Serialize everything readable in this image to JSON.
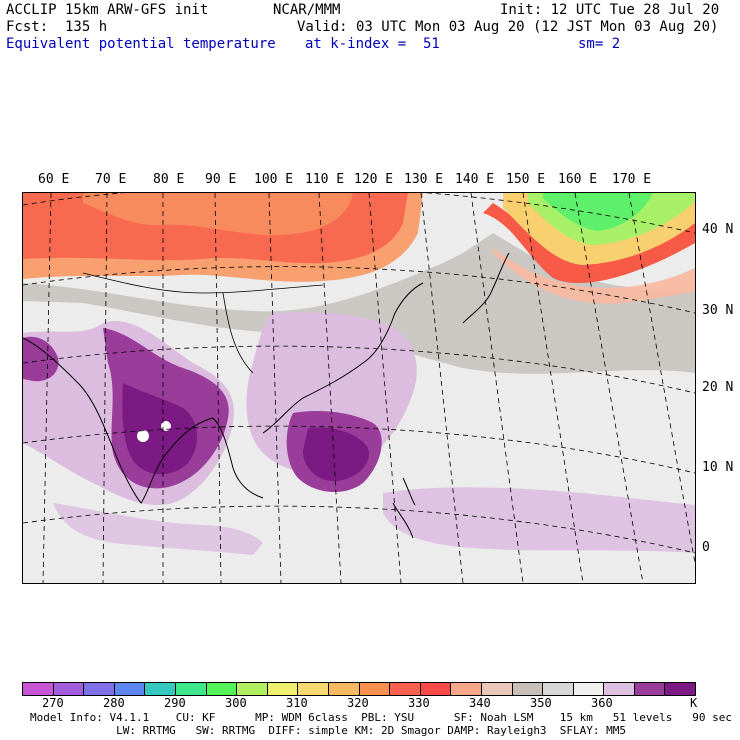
{
  "header": {
    "model_title": "ACCLIP 15km ARW-GFS init",
    "organization": "NCAR/MMM",
    "init_time": "Init: 12 UTC Tue 28 Jul 20",
    "forecast_hour": "Fcst:  135 h",
    "valid_time": "Valid: 03 UTC Mon 03 Aug 20 (12 JST Mon 03 Aug 20)",
    "field_name": "Equivalent potential temperature",
    "level": "at k-index =  51",
    "smoothing": "sm= 2"
  },
  "map": {
    "longitude_labels": [
      "60 E",
      "70 E",
      "80 E",
      "90 E",
      "100 E",
      "110 E",
      "120 E",
      "130 E",
      "140 E",
      "150 E",
      "160 E",
      "170 E"
    ],
    "latitude_labels": [
      "40 N",
      "30 N",
      "20 N",
      "10 N",
      "0"
    ]
  },
  "colorbar": {
    "colors": [
      "#c855d4",
      "#a35ee0",
      "#8070e8",
      "#5f86f0",
      "#33c8c0",
      "#3ee68c",
      "#55f25a",
      "#b0f060",
      "#f0f070",
      "#f8d870",
      "#f8b860",
      "#f89050",
      "#f86050",
      "#f84848",
      "#f8a888",
      "#e8c8b8",
      "#c8c0b8",
      "#d8d8d8",
      "#f0f0f0",
      "#e0c0e0",
      "#9a3c9a",
      "#7a1a82"
    ],
    "tick_labels": [
      "270",
      "280",
      "290",
      "300",
      "310",
      "320",
      "330",
      "340",
      "350",
      "360"
    ],
    "unit": "K"
  },
  "footer": {
    "line1": "Model Info: V4.1.1    CU: KF      MP: WDM 6class  PBL: YSU      SF: Noah LSM    15 km   51 levels   90 sec",
    "line2": "             LW: RRTMG   SW: RRTMG  DIFF: simple KM: 2D Smagor DAMP: Rayleigh3  SFLAY: MM5"
  }
}
